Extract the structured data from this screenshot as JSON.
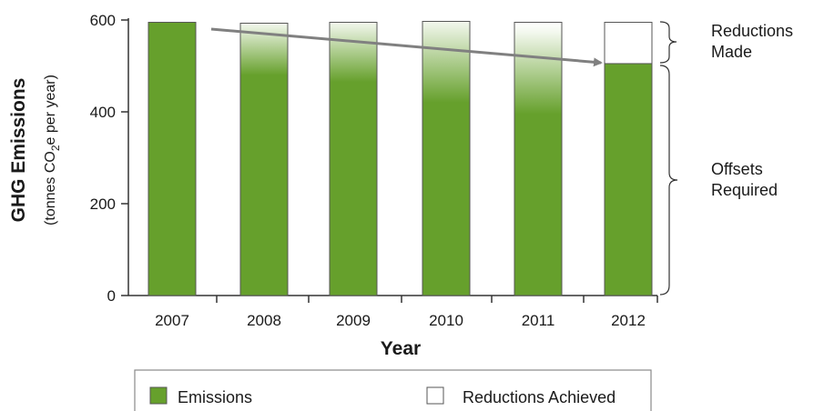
{
  "chart_data": {
    "type": "bar",
    "categories": [
      "2007",
      "2008",
      "2009",
      "2010",
      "2011",
      "2012"
    ],
    "series": [
      {
        "name": "Emissions",
        "values": [
          595,
          480,
          465,
          420,
          395,
          505
        ]
      },
      {
        "name": "Reductions Achieved",
        "values": [
          0,
          113,
          130,
          177,
          200,
          90
        ]
      }
    ],
    "totals": [
      595,
      593,
      595,
      597,
      595,
      595
    ],
    "ylabel_title": "GHG Emissions",
    "ylabel_units_prefix": "(tonnes CO",
    "ylabel_units_sub": "2",
    "ylabel_units_suffix": "e  per year)",
    "xlabel": "Year",
    "ylim": [
      0,
      600
    ],
    "yticks": [
      "0",
      "200",
      "400",
      "600"
    ],
    "annotations": {
      "reductions_made": [
        "Reductions",
        "Made"
      ],
      "offsets_required": [
        "Offsets",
        "Required"
      ]
    },
    "legend": [
      "Emissions",
      "Reductions Achieved"
    ],
    "colors": {
      "emissions": "#66a02c",
      "bar_border": "#555555",
      "trend_arrow": "#808080",
      "legend_border": "#8a8a8a"
    }
  }
}
